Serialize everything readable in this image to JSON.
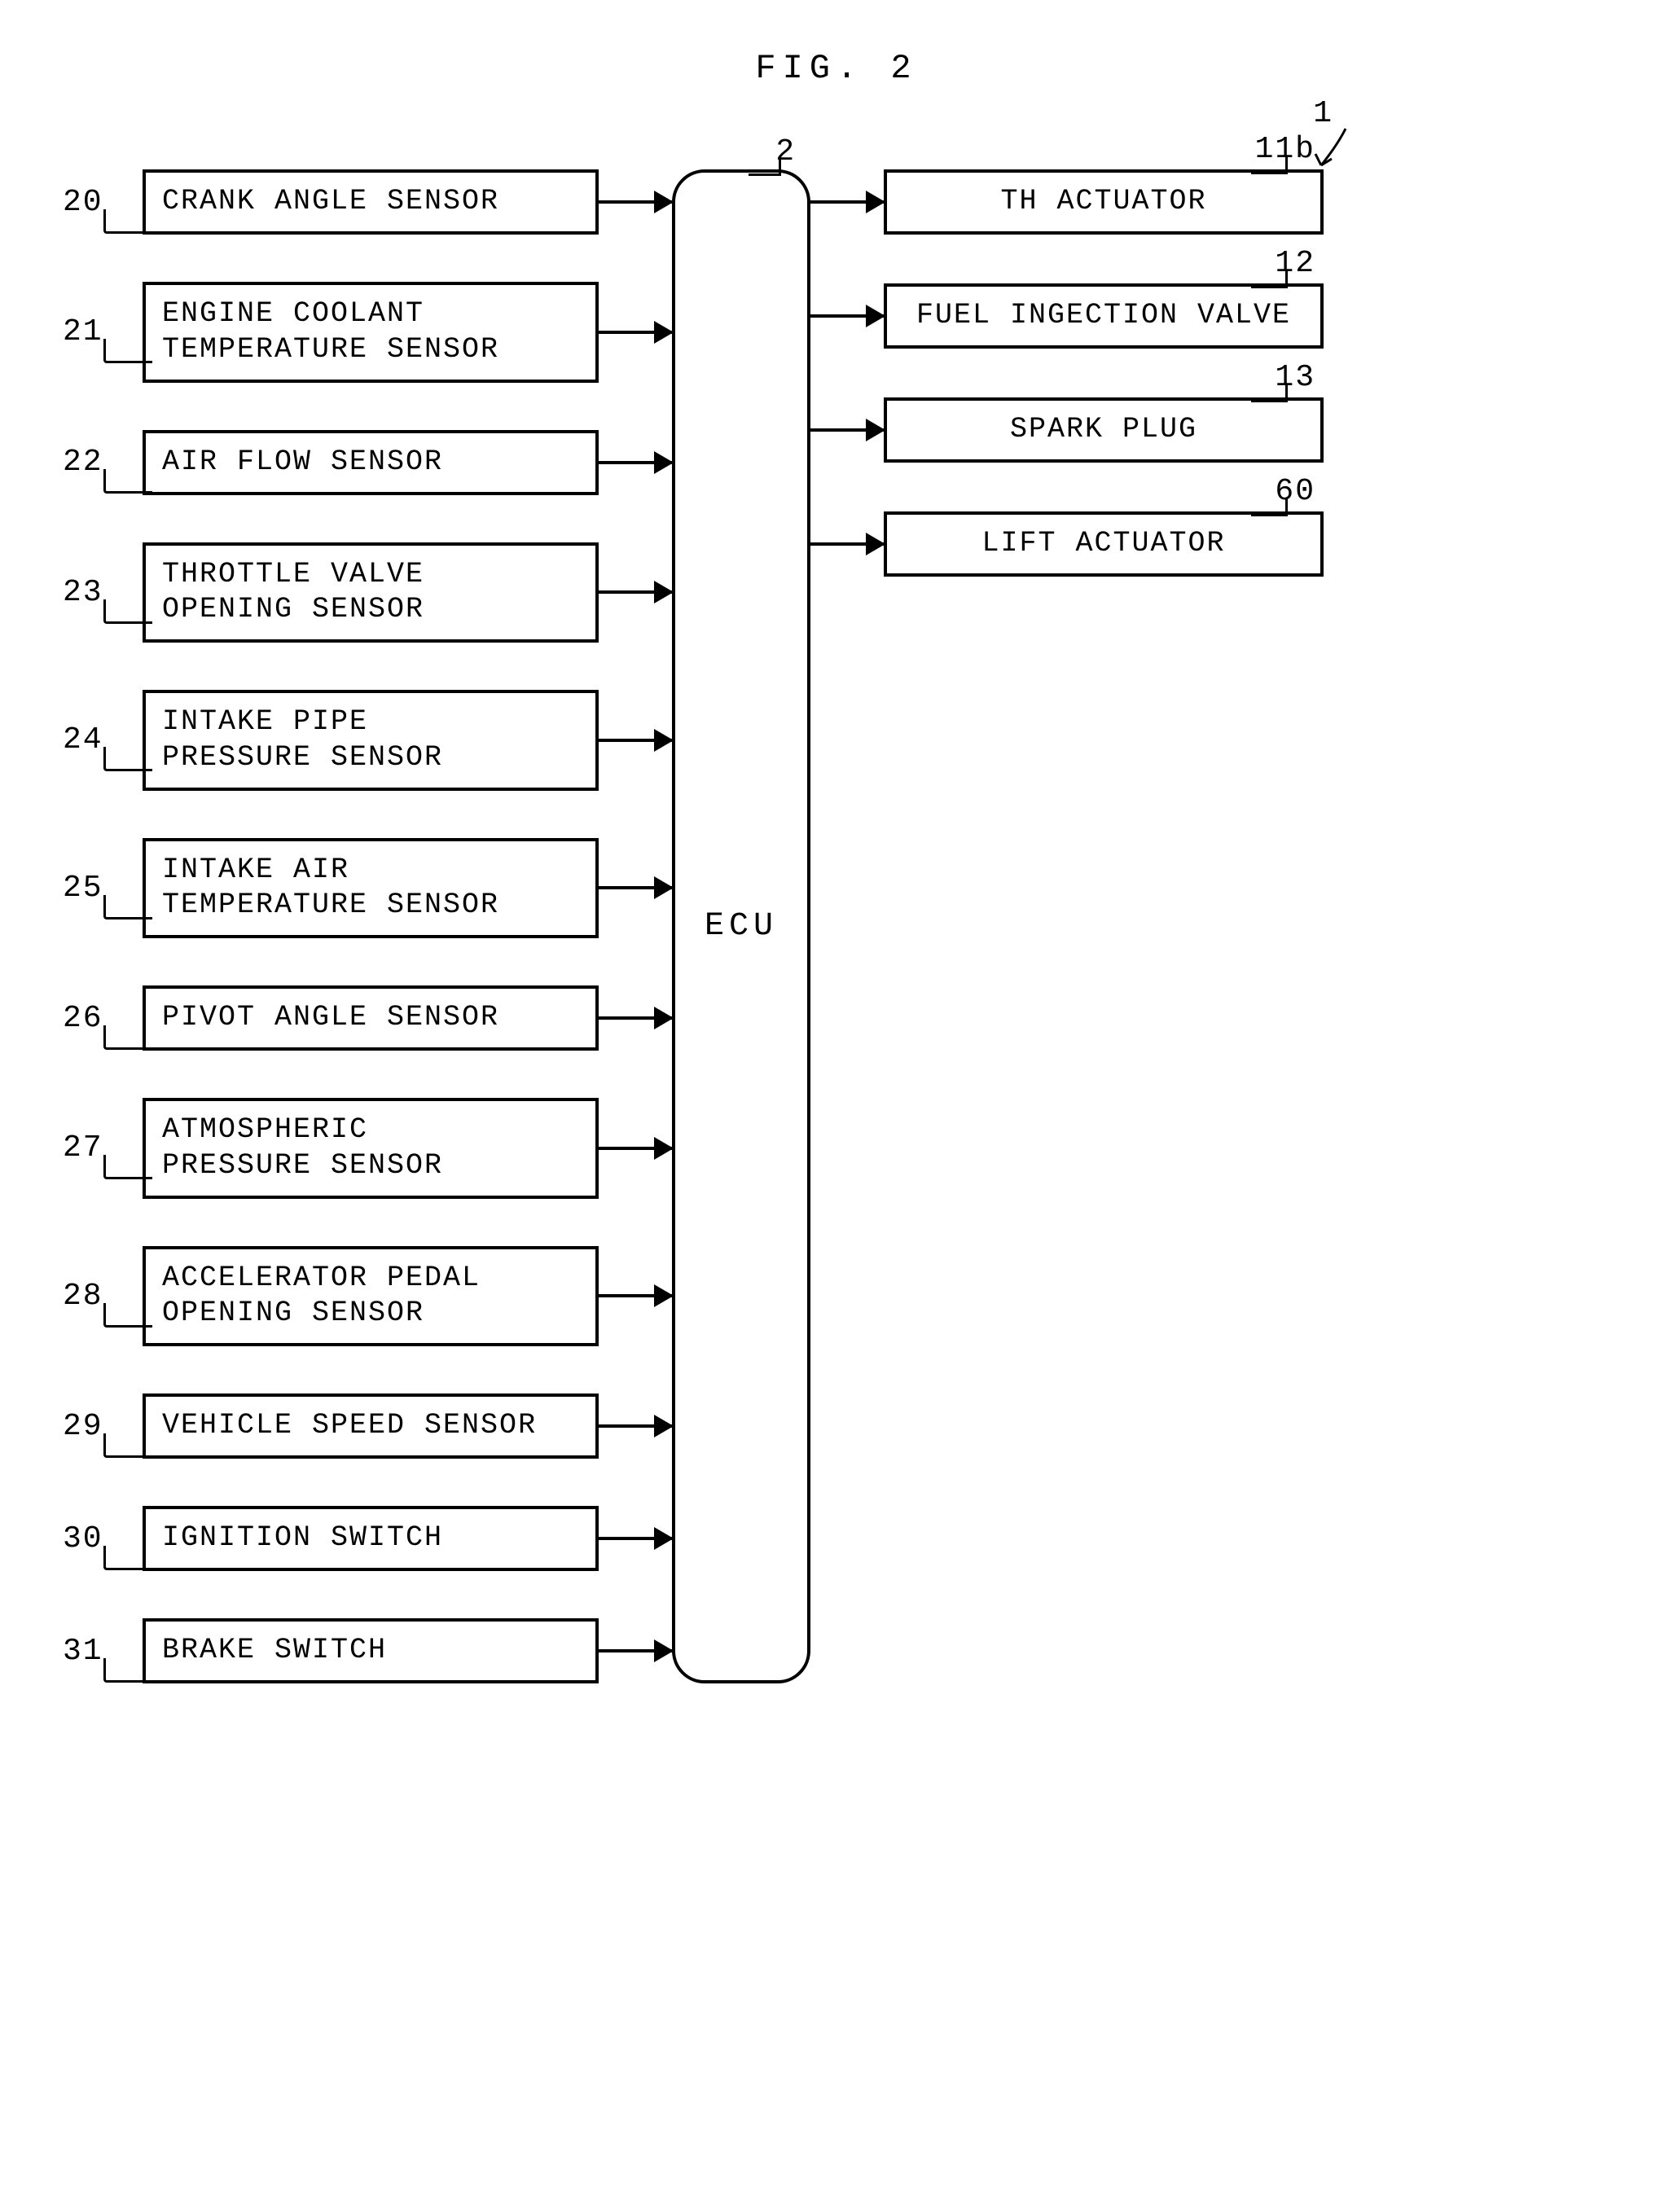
{
  "figure_title": "FIG. 2",
  "system_ref": "1",
  "ecu": {
    "label": "ECU",
    "ref": "2"
  },
  "inputs": [
    {
      "ref": "20",
      "label": "CRANK ANGLE SENSOR",
      "lines": 1
    },
    {
      "ref": "21",
      "label": "ENGINE COOLANT\nTEMPERATURE SENSOR",
      "lines": 2
    },
    {
      "ref": "22",
      "label": "AIR FLOW SENSOR",
      "lines": 1
    },
    {
      "ref": "23",
      "label": "THROTTLE VALVE\nOPENING SENSOR",
      "lines": 2
    },
    {
      "ref": "24",
      "label": "INTAKE PIPE\nPRESSURE SENSOR",
      "lines": 2
    },
    {
      "ref": "25",
      "label": "INTAKE AIR\nTEMPERATURE SENSOR",
      "lines": 2
    },
    {
      "ref": "26",
      "label": "PIVOT ANGLE SENSOR",
      "lines": 1
    },
    {
      "ref": "27",
      "label": "ATMOSPHERIC\nPRESSURE SENSOR",
      "lines": 2
    },
    {
      "ref": "28",
      "label": "ACCELERATOR PEDAL\nOPENING SENSOR",
      "lines": 2
    },
    {
      "ref": "29",
      "label": "VEHICLE SPEED SENSOR",
      "lines": 1
    },
    {
      "ref": "30",
      "label": "IGNITION SWITCH",
      "lines": 1
    },
    {
      "ref": "31",
      "label": "BRAKE SWITCH",
      "lines": 1
    }
  ],
  "outputs": [
    {
      "ref": "11b",
      "label": "TH ACTUATOR"
    },
    {
      "ref": "12",
      "label": "FUEL INGECTION VALVE"
    },
    {
      "ref": "13",
      "label": "SPARK PLUG"
    },
    {
      "ref": "60",
      "label": "LIFT ACTUATOR"
    }
  ],
  "styling": {
    "box_border_width": 4,
    "box_border_color": "#000000",
    "background_color": "#ffffff",
    "font_family": "Courier New",
    "title_fontsize": 42,
    "ref_fontsize": 38,
    "box_fontsize": 35,
    "ecu_fontsize": 40,
    "ecu_border_radius": 40,
    "arrow_length": 90,
    "arrowhead_size": 24,
    "left_box_width": 560,
    "right_box_width": 540,
    "ecu_width": 170,
    "row_gap": 58
  }
}
